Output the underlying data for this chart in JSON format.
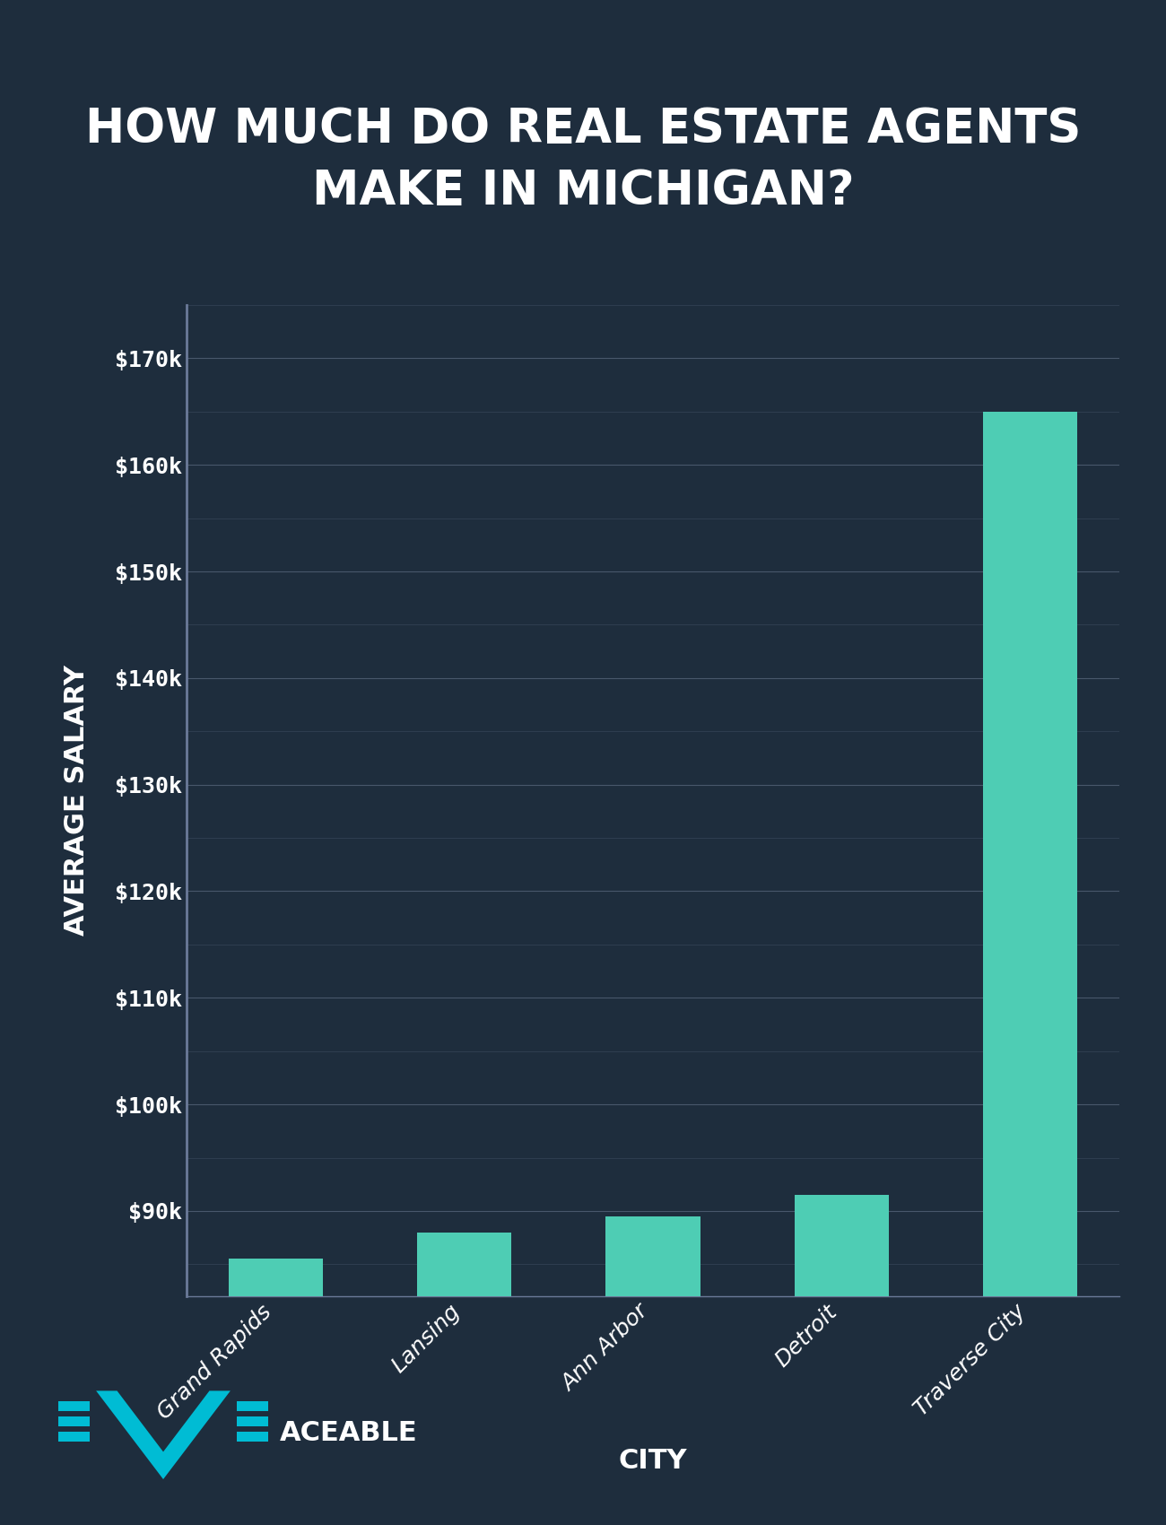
{
  "title": "HOW MUCH DO REAL ESTATE AGENTS\nMAKE IN MICHIGAN?",
  "categories": [
    "Grand Rapids",
    "Lansing",
    "Ann Arbor",
    "Detroit",
    "Traverse City"
  ],
  "values": [
    85500,
    88000,
    89500,
    91500,
    165000
  ],
  "bar_color": "#4ecdb4",
  "background_color": "#1e2d3d",
  "text_color": "#ffffff",
  "grid_color": "#5a6a80",
  "spine_color": "#6b7a99",
  "xlabel": "CITY",
  "ylabel": "AVERAGE SALARY",
  "ylim_min": 82000,
  "ylim_max": 175000,
  "yticks": [
    90000,
    100000,
    110000,
    120000,
    130000,
    140000,
    150000,
    160000,
    170000
  ],
  "ytick_labels": [
    "$90k",
    "$100k",
    "$110k",
    "$120k",
    "$130k",
    "$140k",
    "$150k",
    "$160k",
    "$170k"
  ],
  "title_fontsize": 38,
  "axis_label_fontsize": 22,
  "tick_fontsize": 18,
  "bar_width": 0.5,
  "logo_text": "ACEABLE",
  "logo_color": "#00bcd4"
}
